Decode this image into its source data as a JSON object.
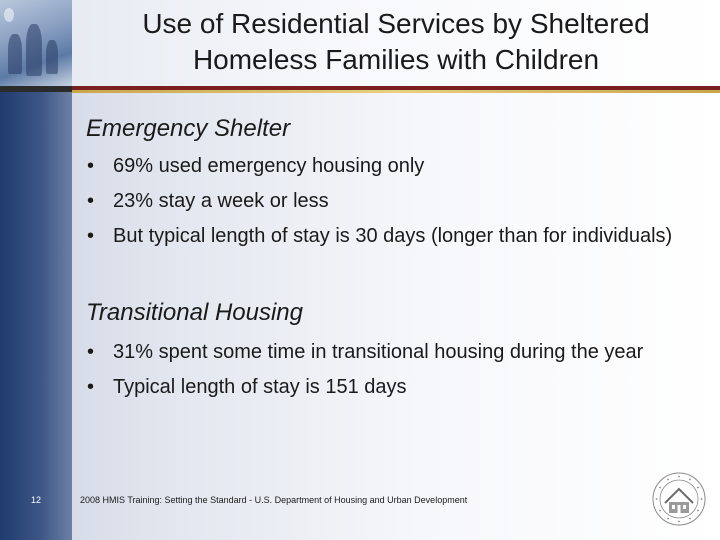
{
  "title": {
    "line1": "Use of Residential Services by Sheltered",
    "line2": "Homeless Families with Children"
  },
  "sections": [
    {
      "heading": "Emergency Shelter",
      "bullets": [
        "69% used emergency housing only",
        "23% stay a week or less",
        "But typical length of stay is 30 days (longer than for individuals)"
      ]
    },
    {
      "heading": "Transitional Housing",
      "bullets": [
        "31% spent some time in transitional housing during the year",
        "Typical length of stay is 151 days"
      ]
    }
  ],
  "footer": {
    "page_number": "12",
    "text": "2008 HMIS Training: Setting the Standard - U.S. Department of Housing and Urban Development"
  },
  "logo": {
    "icon": "hud-seal-icon"
  },
  "colors": {
    "left_band": "#1f3c6f",
    "rule_dark": "#7a1f1f",
    "rule_gold": "#c9a54a",
    "text": "#1a1a1a"
  }
}
